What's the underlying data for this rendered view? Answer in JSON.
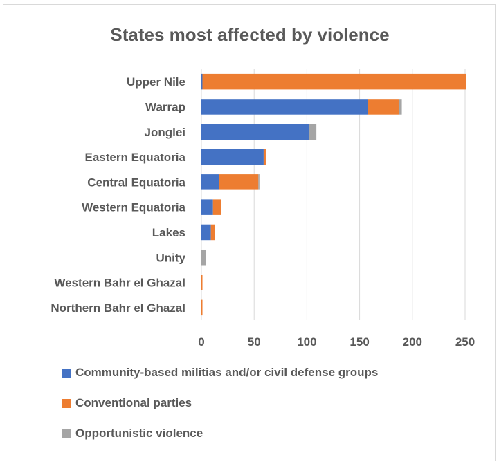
{
  "chart_data": {
    "type": "bar",
    "orientation": "horizontal",
    "stacked": true,
    "title": "States most affected by violence",
    "categories": [
      "Upper Nile",
      "Warrap",
      "Jonglei",
      "Eastern Equatoria",
      "Central Equatoria",
      "Western Equatoria",
      "Lakes",
      "Unity",
      "Western Bahr el Ghazal",
      "Northern Bahr el Ghazal"
    ],
    "series": [
      {
        "name": "Community-based militias and/or civil defense groups",
        "color": "#4472c4",
        "values": [
          1,
          158,
          102,
          59,
          17,
          11,
          9,
          0,
          0,
          0
        ]
      },
      {
        "name": "Conventional parties",
        "color": "#ed7d31",
        "values": [
          250,
          29,
          0,
          2,
          37,
          8,
          4,
          0,
          1,
          1
        ]
      },
      {
        "name": "Opportunistic violence",
        "color": "#a5a5a5",
        "values": [
          0,
          3,
          7,
          0,
          1,
          0,
          0,
          4,
          0,
          0
        ]
      }
    ],
    "xlim": [
      0,
      250
    ],
    "xticks": [
      0,
      50,
      100,
      150,
      200,
      250
    ],
    "grid": true,
    "legend_position": "bottom"
  }
}
